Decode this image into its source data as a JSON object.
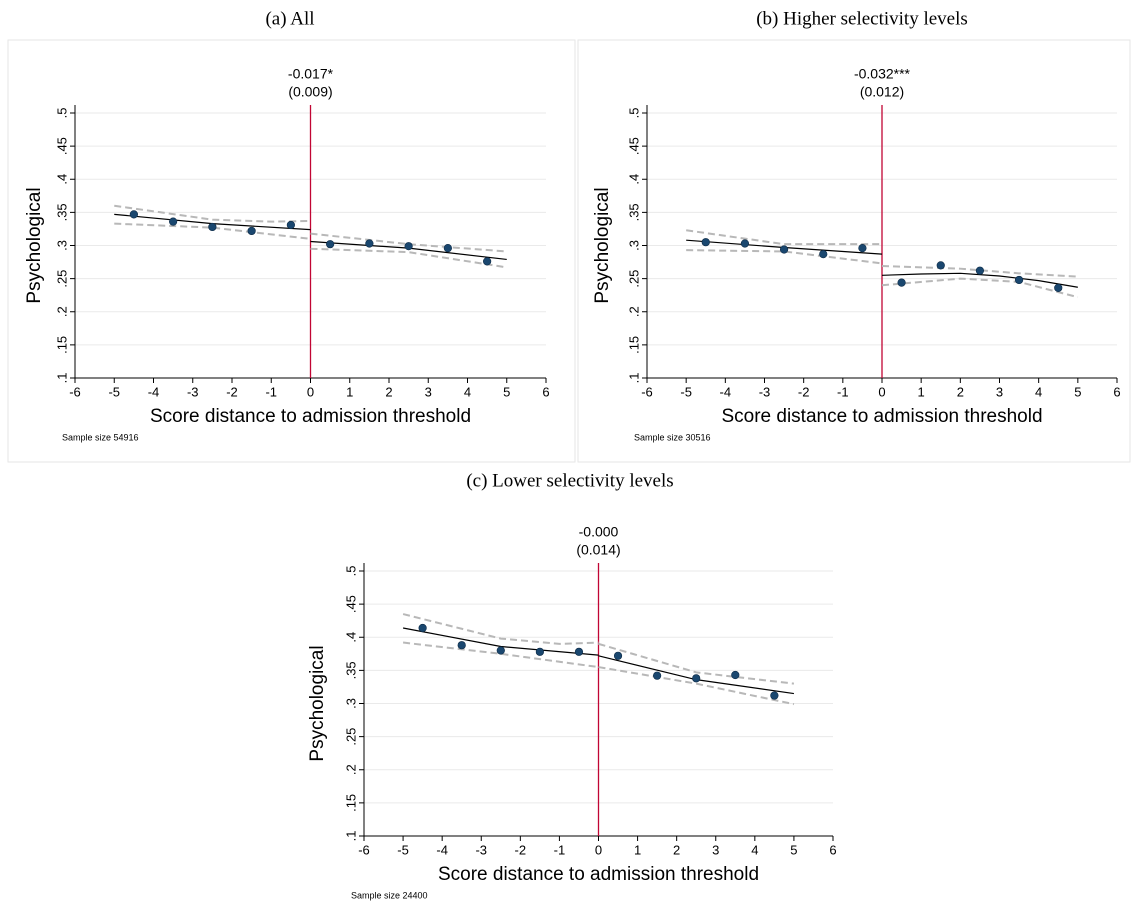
{
  "chart_data": [
    {
      "type": "scatter",
      "title": "(a) All",
      "annotation": [
        "-0.017*",
        "(0.009)"
      ],
      "ylabel": "Psychological",
      "xlabel": "Score distance to admission threshold",
      "note": "Sample size 54916",
      "xlim": [
        -6,
        6
      ],
      "ylim": [
        0.1,
        0.5
      ],
      "xticks": [
        -6,
        -5,
        -4,
        -3,
        -2,
        -1,
        0,
        1,
        2,
        3,
        4,
        5,
        6
      ],
      "yticks": [
        {
          "value": 0.1,
          "label": ".1"
        },
        {
          "value": 0.15,
          "label": ".15"
        },
        {
          "value": 0.2,
          "label": ".2"
        },
        {
          "value": 0.25,
          "label": ".25"
        },
        {
          "value": 0.3,
          "label": ".3"
        },
        {
          "value": 0.35,
          "label": ".35"
        },
        {
          "value": 0.4,
          "label": ".4"
        },
        {
          "value": 0.45,
          "label": ".45"
        },
        {
          "value": 0.5,
          "label": ".5"
        }
      ],
      "grid": true,
      "threshold": 0,
      "threshold_color": "#c10534",
      "points": {
        "color": "#1a476f",
        "x": [
          -4.5,
          -3.5,
          -2.5,
          -1.5,
          -0.5,
          0.5,
          1.5,
          2.5,
          3.5,
          4.5
        ],
        "values": [
          0.347,
          0.336,
          0.328,
          0.322,
          0.331,
          0.302,
          0.303,
          0.299,
          0.296,
          0.276
        ]
      },
      "fit": {
        "color": "#000000",
        "x": [
          -5,
          -2.5,
          0,
          null,
          0,
          2.5,
          5
        ],
        "values": [
          0.347,
          0.333,
          0.324,
          null,
          0.306,
          0.296,
          0.279
        ]
      },
      "ci_upper": {
        "color": "#b8b8b8",
        "x": [
          -5,
          -2.5,
          -1,
          0,
          null,
          0,
          2.5,
          5
        ],
        "values": [
          0.36,
          0.339,
          0.336,
          0.337,
          null,
          0.318,
          0.302,
          0.291
        ]
      },
      "ci_lower": {
        "color": "#b8b8b8",
        "x": [
          -5,
          -2.5,
          0,
          null,
          0,
          2.5,
          5
        ],
        "values": [
          0.333,
          0.327,
          0.31,
          null,
          0.295,
          0.29,
          0.267
        ]
      }
    },
    {
      "type": "scatter",
      "title": "(b) Higher selectivity levels",
      "annotation": [
        "-0.032***",
        "(0.012)"
      ],
      "ylabel": "Psychological",
      "xlabel": "Score distance to admission threshold",
      "note": "Sample size 30516",
      "xlim": [
        -6,
        6
      ],
      "ylim": [
        0.1,
        0.5
      ],
      "xticks": [
        -6,
        -5,
        -4,
        -3,
        -2,
        -1,
        0,
        1,
        2,
        3,
        4,
        5,
        6
      ],
      "yticks": [
        {
          "value": 0.1,
          "label": ".1"
        },
        {
          "value": 0.15,
          "label": ".15"
        },
        {
          "value": 0.2,
          "label": ".2"
        },
        {
          "value": 0.25,
          "label": ".25"
        },
        {
          "value": 0.3,
          "label": ".3"
        },
        {
          "value": 0.35,
          "label": ".35"
        },
        {
          "value": 0.4,
          "label": ".4"
        },
        {
          "value": 0.45,
          "label": ".45"
        },
        {
          "value": 0.5,
          "label": ".5"
        }
      ],
      "grid": true,
      "threshold": 0,
      "threshold_color": "#c10534",
      "points": {
        "color": "#1a476f",
        "x": [
          -4.5,
          -3.5,
          -2.5,
          -1.5,
          -0.5,
          0.5,
          1.5,
          2.5,
          3.5,
          4.5
        ],
        "values": [
          0.305,
          0.303,
          0.294,
          0.287,
          0.296,
          0.244,
          0.27,
          0.262,
          0.248,
          0.236
        ]
      },
      "fit": {
        "color": "#000000",
        "x": [
          -5,
          -2.5,
          0,
          null,
          0,
          1,
          2,
          3,
          4,
          5
        ],
        "values": [
          0.308,
          0.297,
          0.287,
          null,
          0.255,
          0.257,
          0.258,
          0.254,
          0.247,
          0.237
        ]
      },
      "ci_upper": {
        "color": "#b8b8b8",
        "x": [
          -5,
          -2.5,
          0,
          null,
          0,
          2,
          3.5,
          5
        ],
        "values": [
          0.323,
          0.302,
          0.302,
          null,
          0.269,
          0.265,
          0.258,
          0.253
        ]
      },
      "ci_lower": {
        "color": "#b8b8b8",
        "x": [
          -5,
          -2.5,
          0,
          null,
          0,
          2,
          3.5,
          5
        ],
        "values": [
          0.293,
          0.291,
          0.273,
          null,
          0.24,
          0.25,
          0.245,
          0.222
        ]
      }
    },
    {
      "type": "scatter",
      "title": "(c) Lower selectivity levels",
      "annotation": [
        "-0.000",
        "(0.014)"
      ],
      "ylabel": "Psychological",
      "xlabel": "Score distance to admission threshold",
      "note": "Sample size 24400",
      "xlim": [
        -6,
        6
      ],
      "ylim": [
        0.1,
        0.5
      ],
      "xticks": [
        -6,
        -5,
        -4,
        -3,
        -2,
        -1,
        0,
        1,
        2,
        3,
        4,
        5,
        6
      ],
      "yticks": [
        {
          "value": 0.1,
          "label": ".1"
        },
        {
          "value": 0.15,
          "label": ".15"
        },
        {
          "value": 0.2,
          "label": ".2"
        },
        {
          "value": 0.25,
          "label": ".25"
        },
        {
          "value": 0.3,
          "label": ".3"
        },
        {
          "value": 0.35,
          "label": ".35"
        },
        {
          "value": 0.4,
          "label": ".4"
        },
        {
          "value": 0.45,
          "label": ".45"
        },
        {
          "value": 0.5,
          "label": ".5"
        }
      ],
      "grid": true,
      "threshold": 0,
      "threshold_color": "#c10534",
      "points": {
        "color": "#1a476f",
        "x": [
          -4.5,
          -3.5,
          -2.5,
          -1.5,
          -0.5,
          0.5,
          1.5,
          2.5,
          3.5,
          4.5
        ],
        "values": [
          0.414,
          0.388,
          0.38,
          0.378,
          0.378,
          0.372,
          0.342,
          0.338,
          0.343,
          0.312
        ]
      },
      "fit": {
        "color": "#000000",
        "x": [
          -5,
          -2.5,
          0,
          null,
          0,
          2.5,
          5
        ],
        "values": [
          0.414,
          0.386,
          0.373,
          null,
          0.372,
          0.336,
          0.315
        ]
      },
      "ci_upper": {
        "color": "#b8b8b8",
        "x": [
          -5,
          -2.5,
          -1,
          0,
          null,
          0,
          2.5,
          5
        ],
        "values": [
          0.435,
          0.398,
          0.39,
          0.392,
          null,
          0.39,
          0.347,
          0.33
        ]
      },
      "ci_lower": {
        "color": "#b8b8b8",
        "x": [
          -5,
          -2.5,
          0,
          null,
          0,
          2.5,
          5
        ],
        "values": [
          0.392,
          0.375,
          0.355,
          null,
          0.355,
          0.33,
          0.299
        ]
      }
    }
  ]
}
